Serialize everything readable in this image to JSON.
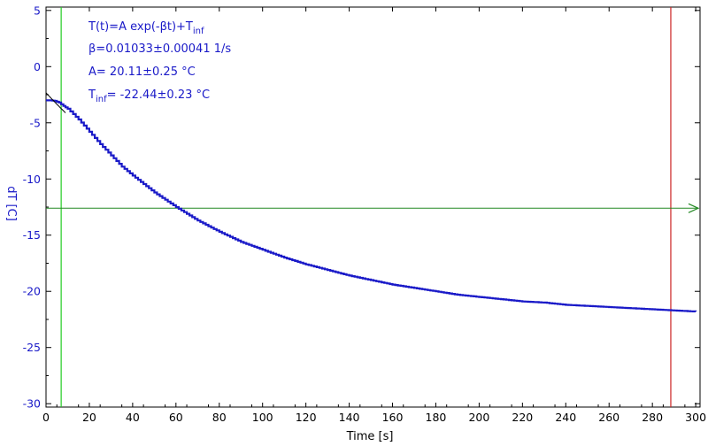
{
  "chart_data": {
    "type": "line",
    "title": "",
    "xlabel": "Time [s]",
    "ylabel": "dT [C]",
    "xlim": [
      0,
      302
    ],
    "ylim": [
      -30.3,
      5.3
    ],
    "x_ticks": [
      0,
      20,
      40,
      60,
      80,
      100,
      120,
      140,
      160,
      180,
      200,
      220,
      240,
      260,
      280,
      300
    ],
    "y_ticks": [
      5,
      0,
      -5,
      -10,
      -15,
      -20,
      -25,
      -30
    ],
    "grid": false,
    "series": [
      {
        "type": "measured",
        "color": "#1a1ac8",
        "x": [
          0,
          2,
          4,
          6,
          8,
          10,
          15,
          20,
          25,
          30,
          35,
          40,
          50,
          60,
          70,
          80,
          90,
          100,
          110,
          120,
          130,
          140,
          150,
          160,
          170,
          180,
          190,
          200,
          210,
          220,
          230,
          240,
          250,
          260,
          270,
          280,
          290,
          300
        ],
        "y": [
          -3.0,
          -3.0,
          -3.05,
          -3.2,
          -3.5,
          -3.75,
          -4.7,
          -5.8,
          -6.9,
          -7.9,
          -8.9,
          -9.7,
          -11.2,
          -12.5,
          -13.7,
          -14.7,
          -15.6,
          -16.3,
          -17.0,
          -17.6,
          -18.1,
          -18.6,
          -19.0,
          -19.4,
          -19.7,
          -20.0,
          -20.3,
          -20.5,
          -20.7,
          -20.9,
          -21.0,
          -21.2,
          -21.3,
          -21.4,
          -21.5,
          -21.6,
          -21.7,
          -21.8
        ]
      }
    ],
    "fit": {
      "color": "#000000",
      "A": 20.11,
      "beta": 0.01033,
      "T_inf": -22.44,
      "x_range": [
        0,
        9
      ]
    },
    "markers": {
      "vertical_left": {
        "x": 7,
        "color": "#22cc22"
      },
      "vertical_right": {
        "x": 288.5,
        "color": "#cc2222"
      },
      "horizontal": {
        "y": -12.6,
        "color": "#228822"
      }
    },
    "annotations": {
      "formula_main": "T(t)=A exp(-βt)+T",
      "formula_sub": "inf",
      "beta_line": "β=0.01033±0.00041 1/s",
      "a_line": "A= 20.11±0.25 °C",
      "tinf_prefix": "T",
      "tinf_sub": "inf",
      "tinf_value": "= -22.44±0.23 °C"
    }
  }
}
